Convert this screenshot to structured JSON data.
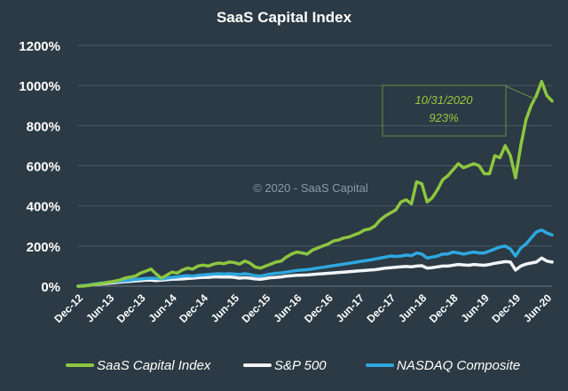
{
  "chart_data": {
    "type": "line",
    "title": "SaaS Capital Index",
    "xlabel": "",
    "ylabel": "",
    "watermark": "© 2020 - SaaS Capital",
    "annotation": {
      "date": "10/31/2020",
      "value": "923%"
    },
    "y_ticks": [
      "0%",
      "200%",
      "400%",
      "600%",
      "800%",
      "1000%",
      "1200%"
    ],
    "ylim": [
      0,
      1200
    ],
    "x_ticks": [
      "Dec-12",
      "Jun-13",
      "Dec-13",
      "Jun-14",
      "Dec-14",
      "Jun-15",
      "Dec-15",
      "Jun-16",
      "Dec-16",
      "Jun-17",
      "Dec-17",
      "Jun-18",
      "Dec-18",
      "Jun-19",
      "Dec-19",
      "Jun-20"
    ],
    "grid": true,
    "legend_position": "bottom",
    "colors": {
      "background": "#2b3a44",
      "grid": "#4a5a65",
      "text": "#ffffff",
      "annotation": "#9dc63f",
      "annotation_border": "#6f8a4a"
    },
    "series": [
      {
        "name": "SaaS Capital Index",
        "color": "#8dc63f",
        "values": [
          0,
          0,
          3,
          8,
          12,
          15,
          20,
          25,
          30,
          40,
          45,
          50,
          65,
          75,
          85,
          60,
          40,
          55,
          70,
          65,
          80,
          90,
          85,
          100,
          105,
          100,
          110,
          115,
          112,
          120,
          118,
          110,
          125,
          115,
          95,
          90,
          100,
          110,
          120,
          125,
          145,
          160,
          170,
          165,
          160,
          180,
          190,
          200,
          210,
          225,
          230,
          240,
          245,
          255,
          265,
          280,
          285,
          300,
          330,
          350,
          365,
          380,
          420,
          430,
          410,
          520,
          510,
          420,
          440,
          480,
          530,
          550,
          580,
          610,
          590,
          600,
          610,
          600,
          560,
          560,
          650,
          640,
          700,
          650,
          540,
          700,
          830,
          900,
          950,
          1020,
          950,
          923
        ]
      },
      {
        "name": "S&P 500",
        "color": "#f2f5f7",
        "values": [
          0,
          2,
          5,
          8,
          10,
          12,
          15,
          17,
          20,
          22,
          24,
          26,
          28,
          30,
          30,
          28,
          30,
          32,
          34,
          35,
          36,
          38,
          40,
          42,
          44,
          44,
          46,
          46,
          45,
          46,
          44,
          40,
          42,
          40,
          36,
          34,
          38,
          42,
          44,
          46,
          50,
          52,
          54,
          55,
          56,
          58,
          60,
          62,
          64,
          66,
          68,
          70,
          72,
          74,
          76,
          78,
          80,
          82,
          86,
          90,
          92,
          94,
          96,
          98,
          96,
          100,
          102,
          90,
          92,
          96,
          100,
          100,
          104,
          108,
          106,
          104,
          108,
          106,
          104,
          108,
          114,
          118,
          122,
          120,
          80,
          100,
          110,
          115,
          120,
          140,
          125,
          120
        ]
      },
      {
        "name": "NASDAQ Composite",
        "color": "#2ea8e0",
        "values": [
          0,
          3,
          6,
          10,
          14,
          17,
          20,
          22,
          25,
          28,
          30,
          33,
          36,
          38,
          40,
          38,
          36,
          40,
          44,
          46,
          50,
          52,
          50,
          54,
          56,
          58,
          60,
          62,
          60,
          62,
          60,
          58,
          62,
          58,
          52,
          50,
          56,
          60,
          64,
          66,
          70,
          74,
          78,
          80,
          82,
          86,
          90,
          94,
          98,
          102,
          106,
          110,
          114,
          118,
          122,
          126,
          130,
          135,
          140,
          145,
          150,
          148,
          150,
          155,
          152,
          165,
          160,
          140,
          145,
          150,
          160,
          160,
          170,
          165,
          160,
          165,
          170,
          165,
          165,
          175,
          185,
          195,
          200,
          185,
          150,
          190,
          210,
          240,
          270,
          280,
          265,
          255
        ]
      }
    ]
  }
}
